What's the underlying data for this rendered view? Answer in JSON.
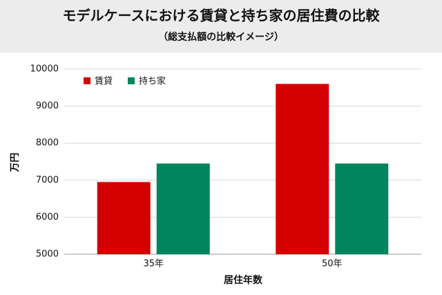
{
  "chart_data": {
    "type": "bar",
    "title": "モデルケースにおける賃貸と持ち家の居住費の比較",
    "subtitle": "（総支払額の比較イメージ）",
    "x_label": "居住年数",
    "y_label": "万円",
    "categories": [
      "35年",
      "50年"
    ],
    "series": [
      {
        "name": "賃貸",
        "color": "#d40000",
        "values": [
          6950,
          9600
        ]
      },
      {
        "name": "持ち家",
        "color": "#00855f",
        "values": [
          7450,
          7450
        ]
      }
    ],
    "ylim": [
      5000,
      10000
    ],
    "yticks": [
      5000,
      6000,
      7000,
      8000,
      9000,
      10000
    ],
    "grid": true,
    "legend": "top-left"
  }
}
